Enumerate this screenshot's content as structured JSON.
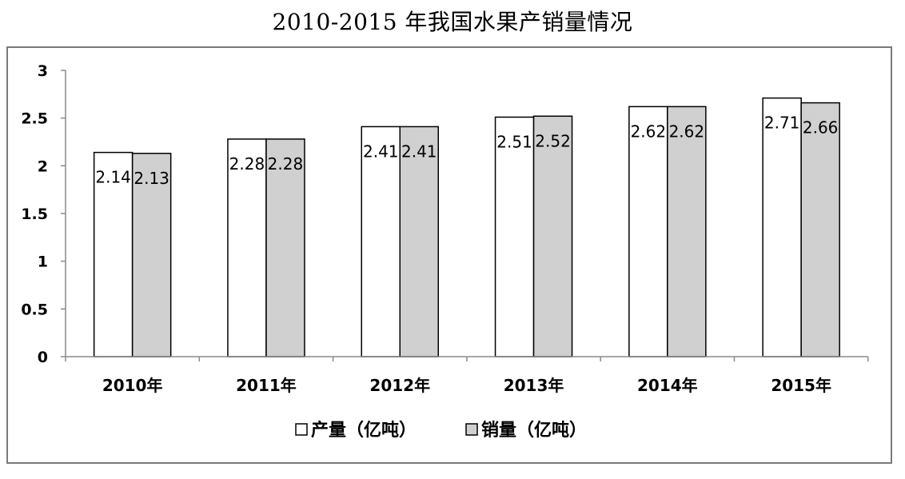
{
  "chart_data": {
    "type": "bar",
    "title": "2010-2015 年我国水果产销量情况",
    "categories": [
      "2010年",
      "2011年",
      "2012年",
      "2013年",
      "2014年",
      "2015年"
    ],
    "series": [
      {
        "name": "产量（亿吨）",
        "values": [
          2.14,
          2.28,
          2.41,
          2.51,
          2.62,
          2.71
        ],
        "color": "#ffffff",
        "labels": [
          "2.14",
          "2.28",
          "2.41",
          "2.51",
          "2.62",
          "2.71"
        ]
      },
      {
        "name": "销量（亿吨）",
        "values": [
          2.13,
          2.28,
          2.41,
          2.52,
          2.62,
          2.66
        ],
        "color": "#d0d0d0",
        "labels": [
          "2.13",
          "2.28",
          "2.41",
          "2.52",
          "2.62",
          "2.66"
        ]
      }
    ],
    "ylim": [
      0,
      3
    ],
    "yticks": [
      "0",
      "0.5",
      "1",
      "1.5",
      "2",
      "2.5",
      "3"
    ],
    "xlabel": "",
    "ylabel": "",
    "grid": false,
    "legend_position": "bottom"
  }
}
